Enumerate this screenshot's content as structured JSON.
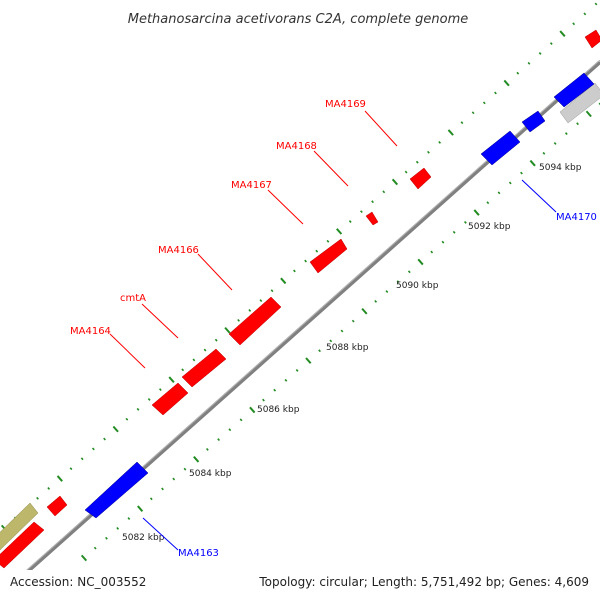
{
  "title": "Methanosarcina acetivorans C2A, complete genome",
  "footer": {
    "accession": "Accession: NC_003552",
    "info": "Topology: circular; Length: 5,751,492 bp; Genes: 4,609"
  },
  "colors": {
    "forward_gene": "#ff0000",
    "reverse_gene": "#0000ff",
    "other_feature_grey": "#cccccc",
    "other_feature_tan": "#bdb76b",
    "backbone": "#808080",
    "tick": "#228b22"
  },
  "scale_labels": [
    "5082 kbp",
    "5084 kbp",
    "5086 kbp",
    "5088 kbp",
    "5090 kbp",
    "5092 kbp",
    "5094 kbp"
  ],
  "gene_labels": [
    {
      "text": "MA4164",
      "strand": "forward"
    },
    {
      "text": "cmtA",
      "strand": "forward"
    },
    {
      "text": "MA4166",
      "strand": "forward"
    },
    {
      "text": "MA4167",
      "strand": "forward"
    },
    {
      "text": "MA4168",
      "strand": "forward"
    },
    {
      "text": "MA4169",
      "strand": "forward"
    },
    {
      "text": "MA4163",
      "strand": "reverse"
    },
    {
      "text": "MA4170",
      "strand": "reverse"
    }
  ]
}
